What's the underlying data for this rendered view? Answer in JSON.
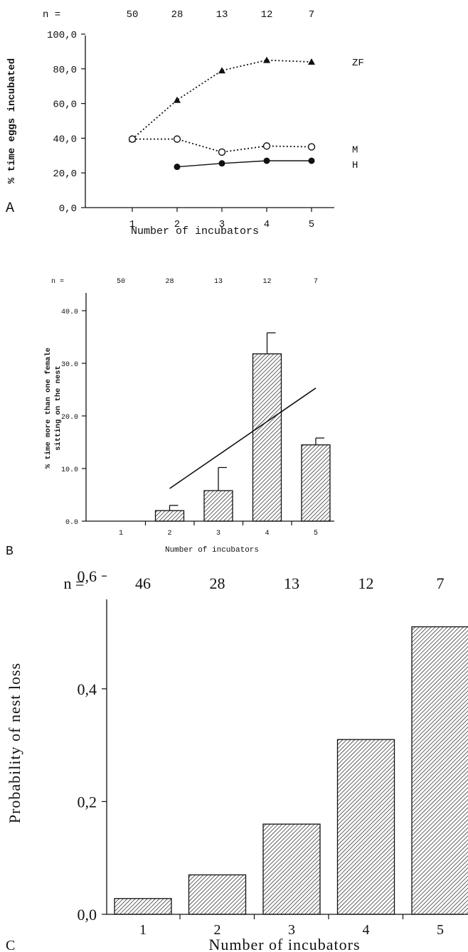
{
  "chart_data": [
    {
      "panel": "A",
      "type": "line",
      "n_label": "n =",
      "n_values": [
        "50",
        "28",
        "13",
        "12",
        "7"
      ],
      "ylabel": "% time eggs incubated",
      "xlabel": "Number of incubators",
      "y_ticks": [
        "0,0",
        "20,0",
        "40,0",
        "60,0",
        "80,0",
        "100,0"
      ],
      "ylim": [
        0,
        100
      ],
      "x_ticks": [
        "1",
        "2",
        "3",
        "4",
        "5"
      ],
      "series": [
        {
          "name": "ZF",
          "marker": "filled-triangle",
          "line": "dotted",
          "x": [
            1,
            2,
            3,
            4,
            5
          ],
          "values": [
            39.5,
            62,
            79,
            85,
            84
          ]
        },
        {
          "name": "M",
          "marker": "open-circle",
          "line": "dotted",
          "x": [
            1,
            2,
            3,
            4,
            5
          ],
          "values": [
            39.5,
            39.5,
            32,
            35.5,
            35
          ]
        },
        {
          "name": "H",
          "marker": "filled-circle",
          "line": "solid",
          "x": [
            2,
            3,
            4,
            5
          ],
          "values": [
            23.5,
            25.5,
            27,
            27
          ]
        }
      ]
    },
    {
      "panel": "B",
      "type": "bar",
      "n_label": "n =",
      "n_values": [
        "50",
        "28",
        "13",
        "12",
        "7"
      ],
      "ylabel_line1": "% time more than one female",
      "ylabel_line2": "sitting on the nest",
      "xlabel": "Number of incubators",
      "y_ticks": [
        "0.0",
        "10.0",
        "20.0",
        "30.0",
        "40.0"
      ],
      "ylim": [
        0,
        45
      ],
      "categories": [
        "1",
        "2",
        "3",
        "4",
        "5"
      ],
      "values": [
        0,
        2,
        5.8,
        31.8,
        14.5
      ],
      "error_upper": [
        0,
        3,
        10.2,
        35.8,
        15.8
      ],
      "trend_line": {
        "x": [
          2,
          5
        ],
        "y": [
          6.2,
          25.3
        ]
      }
    },
    {
      "panel": "C",
      "type": "bar",
      "n_label": "n =",
      "n_values": [
        "46",
        "28",
        "13",
        "12",
        "7"
      ],
      "ylabel": "Probability of nest loss",
      "xlabel": "Number of incubators",
      "y_ticks": [
        "0,0",
        "0,2",
        "0,4",
        "0,6"
      ],
      "ylim": [
        0,
        0.66
      ],
      "categories": [
        "1",
        "2",
        "3",
        "4",
        "5"
      ],
      "values": [
        0.028,
        0.07,
        0.16,
        0.31,
        0.51
      ]
    }
  ]
}
